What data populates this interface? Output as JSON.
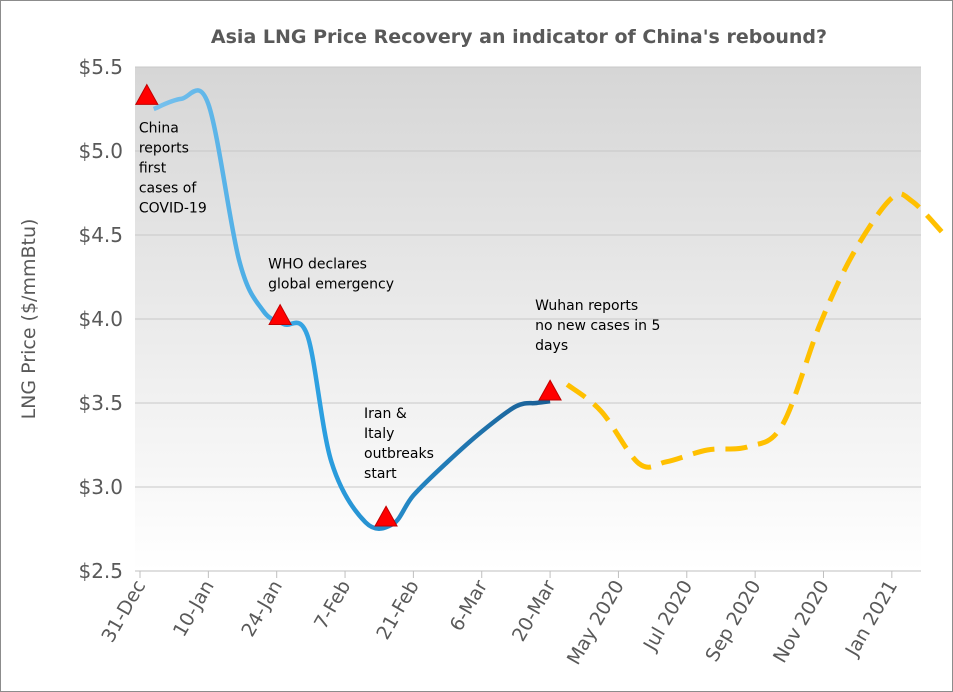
{
  "chart_data": {
    "type": "line",
    "title": "Asia LNG Price Recovery an indicator of China's rebound?",
    "ylabel": "LNG Price ($/mmBtu)",
    "xlabel": "",
    "ylim": [
      2.5,
      5.5
    ],
    "yticks": [
      2.5,
      3.0,
      3.5,
      4.0,
      4.5,
      5.0,
      5.5
    ],
    "ytick_labels": [
      "$2.5",
      "$3.0",
      "$3.5",
      "$4.0",
      "$4.5",
      "$5.0",
      "$5.5"
    ],
    "categories": [
      "31-Dec",
      "10-Jan",
      "24-Jan",
      "7-Feb",
      "21-Feb",
      "6-Mar",
      "20-Mar",
      "May 2020",
      "Jul 2020",
      "Sep 2020",
      "Nov 2020",
      "Jan 2021"
    ],
    "grid": true,
    "legend": "none",
    "colors": {
      "actual_start": "#7fc4ee",
      "actual_mid": "#2b9fe0",
      "actual_end": "#1a5f95",
      "forecast": "#ffc000",
      "marker": "#ff0000",
      "background_top": "#d6d6d6",
      "background_bottom": "#ffffff"
    },
    "series": [
      {
        "style": "solid-gradient",
        "x": [
          0.2,
          0.6,
          1.0,
          1.45,
          1.8,
          2.1,
          2.45,
          2.8,
          3.3,
          3.7,
          4.0,
          4.5,
          5.0,
          5.5,
          5.8,
          6.0
        ],
        "values": [
          5.25,
          5.31,
          5.28,
          4.35,
          4.05,
          3.97,
          3.9,
          3.15,
          2.79,
          2.78,
          2.95,
          3.15,
          3.33,
          3.48,
          3.5,
          3.51
        ]
      },
      {
        "style": "dashed",
        "x": [
          6.25,
          6.75,
          7.3,
          7.7,
          8.3,
          8.9,
          9.4,
          9.95,
          10.45,
          11.0,
          11.3,
          11.75
        ],
        "values": [
          3.61,
          3.45,
          3.14,
          3.15,
          3.22,
          3.24,
          3.37,
          3.97,
          4.4,
          4.72,
          4.7,
          4.51
        ]
      }
    ],
    "events": [
      {
        "x": 0.1,
        "value": 5.33,
        "lines": [
          "China",
          "reports",
          "first",
          "cases of",
          "COVID-19"
        ]
      },
      {
        "x": 2.05,
        "value": 4.02,
        "lines": [
          "WHO declares",
          "global emergency"
        ]
      },
      {
        "x": 3.6,
        "value": 2.82,
        "lines": [
          "Iran &",
          "Italy",
          "outbreaks",
          "start"
        ]
      },
      {
        "x": 6.0,
        "value": 3.57,
        "lines": [
          "Wuhan reports",
          "no new cases in 5",
          "days"
        ]
      }
    ]
  }
}
